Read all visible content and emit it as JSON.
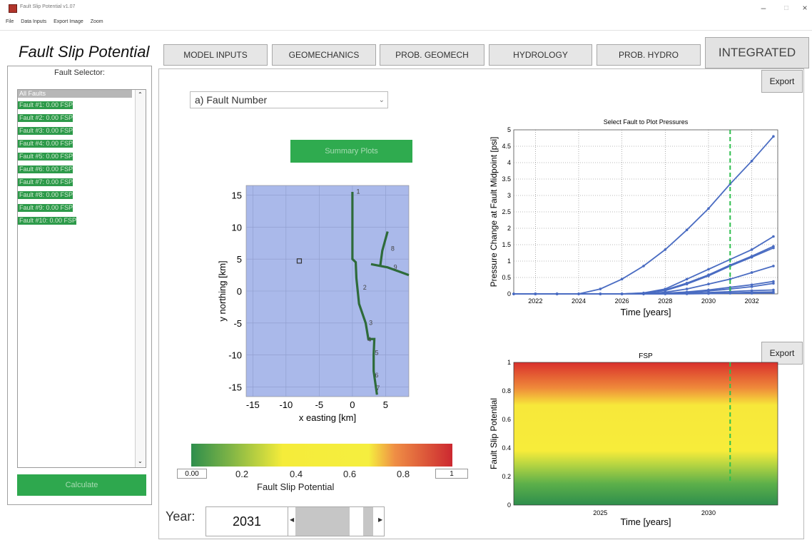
{
  "window": {
    "title": "Fault Slip Potential v1.07",
    "minimize": "–",
    "maximize": "□",
    "close": "×"
  },
  "menu": [
    "File",
    "Data Inputs",
    "Export Image",
    "Zoom"
  ],
  "app_title": "Fault Slip Potential",
  "tabs": [
    {
      "label": "MODEL INPUTS"
    },
    {
      "label": "GEOMECHANICS"
    },
    {
      "label": "PROB. GEOMECH"
    },
    {
      "label": "HYDROLOGY"
    },
    {
      "label": "PROB. HYDRO"
    },
    {
      "label": "INTEGRATED",
      "active": true
    }
  ],
  "sidebar": {
    "label": "Fault Selector:",
    "items": [
      "All Faults",
      "Fault #1: 0.00 FSP",
      "Fault #2: 0.00 FSP",
      "Fault #3: 0.00 FSP",
      "Fault #4: 0.00 FSP",
      "Fault #5: 0.00 FSP",
      "Fault #6: 0.00 FSP",
      "Fault #7: 0.00 FSP",
      "Fault #8: 0.00 FSP",
      "Fault #9: 0.00 FSP",
      "Fault #10: 0.00 FSP"
    ],
    "calculate": "Calculate"
  },
  "controls": {
    "dropdown_value": "a) Fault Number",
    "summary_button": "Summary Plots",
    "export_top": "Export",
    "export_bottom": "Export",
    "year_label": "Year:",
    "year_value": "2031"
  },
  "colorbar": {
    "min": "0.00",
    "max": "1",
    "ticks": [
      "0.2",
      "0.4",
      "0.6",
      "0.8"
    ],
    "title": "Fault Slip Potential"
  },
  "colors": {
    "fault": "#2e6b3a",
    "map_bg": "#aab9ea",
    "series": "#4a6cc2",
    "year_marker": "#2fbf4e",
    "button_green": "#2ea84e"
  },
  "chart_data": [
    {
      "type": "line",
      "title": "",
      "xlabel": "x easting [km]",
      "ylabel": "y northing [km]",
      "xlim": [
        -16,
        8.5
      ],
      "ylim": [
        -16.5,
        16.5
      ],
      "xticks": [
        -15,
        -10,
        -5,
        0,
        5
      ],
      "yticks": [
        -15,
        -10,
        -5,
        0,
        5,
        10,
        15
      ],
      "well": {
        "x": -8,
        "y": 4.7
      },
      "faults": [
        {
          "label": "1",
          "points": [
            [
              0,
              15.5
            ],
            [
              0,
              5
            ],
            [
              0.5,
              4.5
            ],
            [
              0.6,
              2
            ],
            [
              1,
              -2
            ],
            [
              2,
              -5
            ],
            [
              2.4,
              -7.5
            ],
            [
              3.3,
              -7.5
            ],
            [
              3.2,
              -10
            ],
            [
              3.2,
              -12.5
            ],
            [
              3.4,
              -14
            ],
            [
              3.7,
              -16.2
            ]
          ]
        },
        {
          "label": "8",
          "points": [
            [
              5.3,
              9.3
            ],
            [
              4.5,
              6.3
            ],
            [
              4.2,
              4
            ]
          ]
        },
        {
          "label": "9",
          "points": [
            [
              2.8,
              4.2
            ],
            [
              5.3,
              3.7
            ],
            [
              8.5,
              2.5
            ]
          ]
        }
      ],
      "fault_labels": [
        {
          "text": "1",
          "x": 0.6,
          "y": 15.2
        },
        {
          "text": "2",
          "x": 1.6,
          "y": 0.2
        },
        {
          "text": "3",
          "x": 2.5,
          "y": -5.3
        },
        {
          "text": "4",
          "x": 2.3,
          "y": -7.9
        },
        {
          "text": "5",
          "x": 3.4,
          "y": -10
        },
        {
          "text": "6",
          "x": 3.4,
          "y": -13.5
        },
        {
          "text": "7",
          "x": 3.6,
          "y": -15.5
        },
        {
          "text": "8",
          "x": 5.8,
          "y": 6.3
        },
        {
          "text": "9",
          "x": 6.2,
          "y": 3.4
        }
      ]
    },
    {
      "type": "line",
      "title": "Select Fault to Plot Pressures",
      "xlabel": "Time [years]",
      "ylabel": "Pressure Change at Fault Midpoint [psi]",
      "xlim": [
        2021,
        2033.2
      ],
      "ylim": [
        0,
        5
      ],
      "xticks": [
        2022,
        2024,
        2026,
        2028,
        2030,
        2032
      ],
      "yticks": [
        0,
        0.5,
        1,
        1.5,
        2,
        2.5,
        3,
        3.5,
        4,
        4.5,
        5
      ],
      "marker_year": 2031,
      "x": [
        2021,
        2022,
        2023,
        2024,
        2025,
        2026,
        2027,
        2028,
        2029,
        2030,
        2031,
        2032,
        2033
      ],
      "series": [
        {
          "values": [
            0,
            0,
            0,
            0,
            0.15,
            0.45,
            0.85,
            1.35,
            1.95,
            2.6,
            3.35,
            4.05,
            4.8
          ]
        },
        {
          "values": [
            0,
            0,
            0,
            0,
            0,
            0,
            0.03,
            0.15,
            0.45,
            0.75,
            1.05,
            1.35,
            1.75
          ]
        },
        {
          "values": [
            0,
            0,
            0,
            0,
            0,
            0,
            0.02,
            0.12,
            0.33,
            0.58,
            0.88,
            1.15,
            1.45
          ]
        },
        {
          "values": [
            0,
            0,
            0,
            0,
            0,
            0,
            0.02,
            0.1,
            0.3,
            0.55,
            0.85,
            1.12,
            1.4
          ]
        },
        {
          "values": [
            0,
            0,
            0,
            0,
            0,
            0,
            0,
            0.05,
            0.15,
            0.3,
            0.45,
            0.65,
            0.85
          ]
        },
        {
          "values": [
            0,
            0,
            0,
            0,
            0,
            0,
            0,
            0.02,
            0.06,
            0.12,
            0.2,
            0.28,
            0.38
          ]
        },
        {
          "values": [
            0,
            0,
            0,
            0,
            0,
            0,
            0,
            0.01,
            0.04,
            0.09,
            0.15,
            0.22,
            0.32
          ]
        },
        {
          "values": [
            0,
            0,
            0,
            0,
            0,
            0,
            0,
            0.01,
            0.02,
            0.04,
            0.07,
            0.1,
            0.12
          ]
        },
        {
          "values": [
            0,
            0,
            0,
            0,
            0,
            0,
            0,
            0,
            0.01,
            0.02,
            0.03,
            0.05,
            0.06
          ]
        },
        {
          "values": [
            0,
            0,
            0,
            0,
            0,
            0,
            0,
            0,
            0,
            0.01,
            0.02,
            0.02,
            0.03
          ]
        }
      ]
    },
    {
      "type": "heatmap",
      "title": "FSP",
      "xlabel": "Time [years]",
      "ylabel": "Fault Slip Potential",
      "xlim": [
        2021,
        2033.2
      ],
      "ylim": [
        0,
        1
      ],
      "xticks": [
        2025,
        2030
      ],
      "yticks": [
        0,
        0.2,
        0.4,
        0.6,
        0.8,
        1
      ],
      "marker_year": 2031
    }
  ]
}
